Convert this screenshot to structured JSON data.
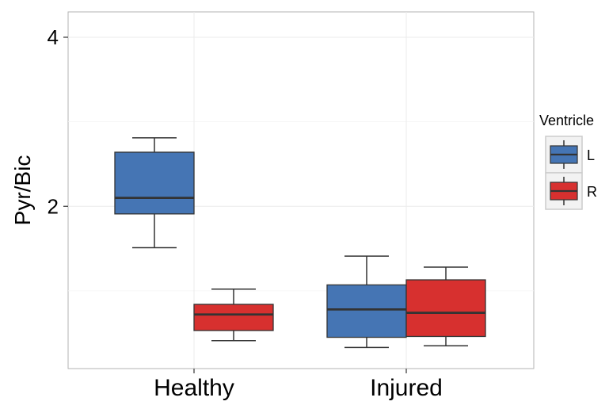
{
  "chart_data": {
    "type": "boxplot",
    "title": "",
    "xlabel": "",
    "ylabel": "Pyr/Bic",
    "ylim": [
      0.08,
      4.3
    ],
    "yticks": [
      2,
      4
    ],
    "ytick_labels": [
      "2",
      "4"
    ],
    "categories": [
      "Healthy",
      "Injured"
    ],
    "grid": true,
    "legend": {
      "title": "Ventricle",
      "placement": "right"
    },
    "series": [
      {
        "name": "L",
        "color": "#4575b4",
        "boxes": [
          {
            "category": "Healthy",
            "whisker_low": 1.51,
            "q1": 1.91,
            "median": 2.1,
            "q3": 2.64,
            "whisker_high": 2.81
          },
          {
            "category": "Injured",
            "whisker_low": 0.33,
            "q1": 0.45,
            "median": 0.78,
            "q3": 1.07,
            "whisker_high": 1.41
          }
        ]
      },
      {
        "name": "R",
        "color": "#d7302f",
        "boxes": [
          {
            "category": "Healthy",
            "whisker_low": 0.41,
            "q1": 0.53,
            "median": 0.72,
            "q3": 0.84,
            "whisker_high": 1.02
          },
          {
            "category": "Injured",
            "whisker_low": 0.35,
            "q1": 0.46,
            "median": 0.74,
            "q3": 1.13,
            "whisker_high": 1.28
          }
        ]
      }
    ]
  }
}
